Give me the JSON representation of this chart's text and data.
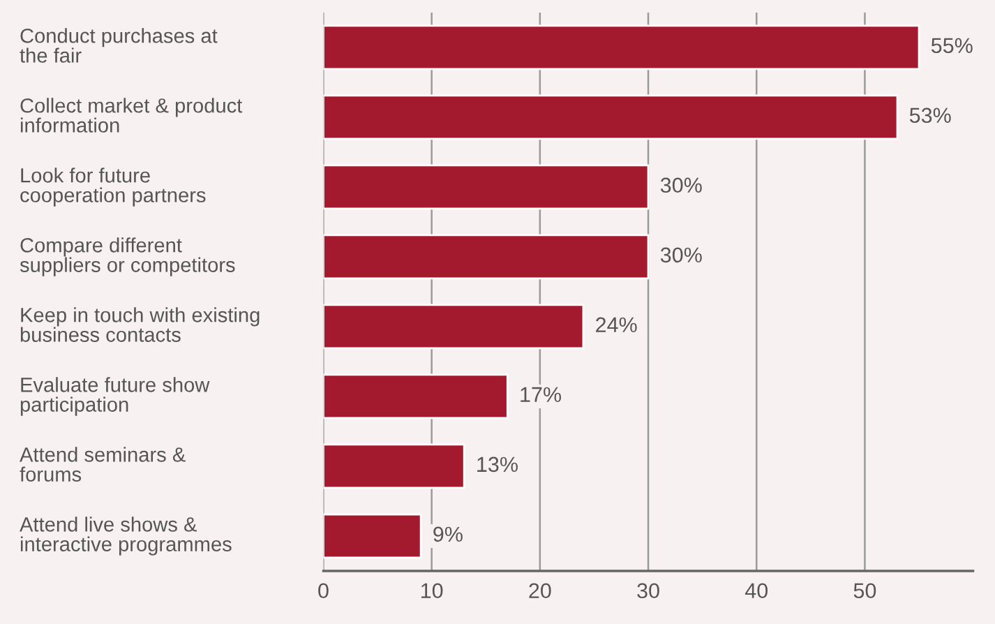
{
  "chart_data": {
    "type": "bar",
    "orientation": "horizontal",
    "categories": [
      "Conduct purchases at\nthe fair",
      "Collect market & product\ninformation",
      "Look for future\ncooperation partners",
      "Compare different\nsuppliers or competitors",
      "Keep in touch with existing\nbusiness contacts",
      "Evaluate future show\nparticipation",
      "Attend seminars &\nforums",
      "Attend live shows &\ninteractive programmes"
    ],
    "values": [
      55,
      53,
      30,
      30,
      24,
      17,
      13,
      9
    ],
    "value_labels": [
      "55%",
      "53%",
      "30%",
      "30%",
      "24%",
      "17%",
      "13%",
      "9%"
    ],
    "color": "#a31a2e",
    "xlim": [
      0,
      60
    ],
    "xticks": [
      0,
      10,
      20,
      30,
      40,
      50
    ],
    "grid": "x"
  }
}
